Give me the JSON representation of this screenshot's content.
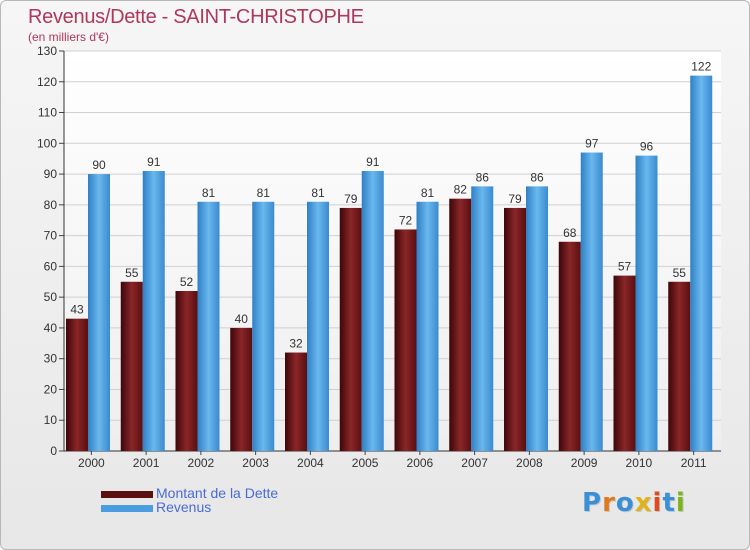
{
  "title": "Revenus/Dette - SAINT-CHRISTOPHE",
  "subtitle": "(en milliers d'€)",
  "legend": [
    {
      "label": "Montant de la Dette",
      "color": "#6b1416"
    },
    {
      "label": "Revenus",
      "color": "#4a9de0"
    }
  ],
  "logo": {
    "text": "Proxiti",
    "letters": [
      {
        "ch": "P",
        "color": "#3a8fd6"
      },
      {
        "ch": "r",
        "color": "#e07a1c"
      },
      {
        "ch": "o",
        "color": "#3a8fd6"
      },
      {
        "ch": "x",
        "color": "#e0b21c"
      },
      {
        "ch": "i",
        "color": "#e04a1c"
      },
      {
        "ch": "t",
        "color": "#3a8fd6"
      },
      {
        "ch": "i",
        "color": "#7ab51d"
      }
    ]
  },
  "chart_data": {
    "type": "bar",
    "title": "Revenus/Dette - SAINT-CHRISTOPHE",
    "subtitle": "(en milliers d'€)",
    "categories": [
      "2000",
      "2001",
      "2002",
      "2003",
      "2004",
      "2005",
      "2006",
      "2007",
      "2008",
      "2009",
      "2010",
      "2011"
    ],
    "series": [
      {
        "name": "Montant de la Dette",
        "color": "#6b1416",
        "values": [
          43,
          55,
          52,
          40,
          32,
          79,
          72,
          82,
          79,
          68,
          57,
          55
        ]
      },
      {
        "name": "Revenus",
        "color": "#4a9de0",
        "values": [
          90,
          91,
          81,
          81,
          81,
          91,
          81,
          86,
          86,
          97,
          96,
          122
        ]
      }
    ],
    "ylim": [
      0,
      130
    ],
    "yticks": [
      0,
      10,
      20,
      30,
      40,
      50,
      60,
      70,
      80,
      90,
      100,
      110,
      120,
      130
    ],
    "grid": true,
    "legend_position": "bottom-left"
  }
}
